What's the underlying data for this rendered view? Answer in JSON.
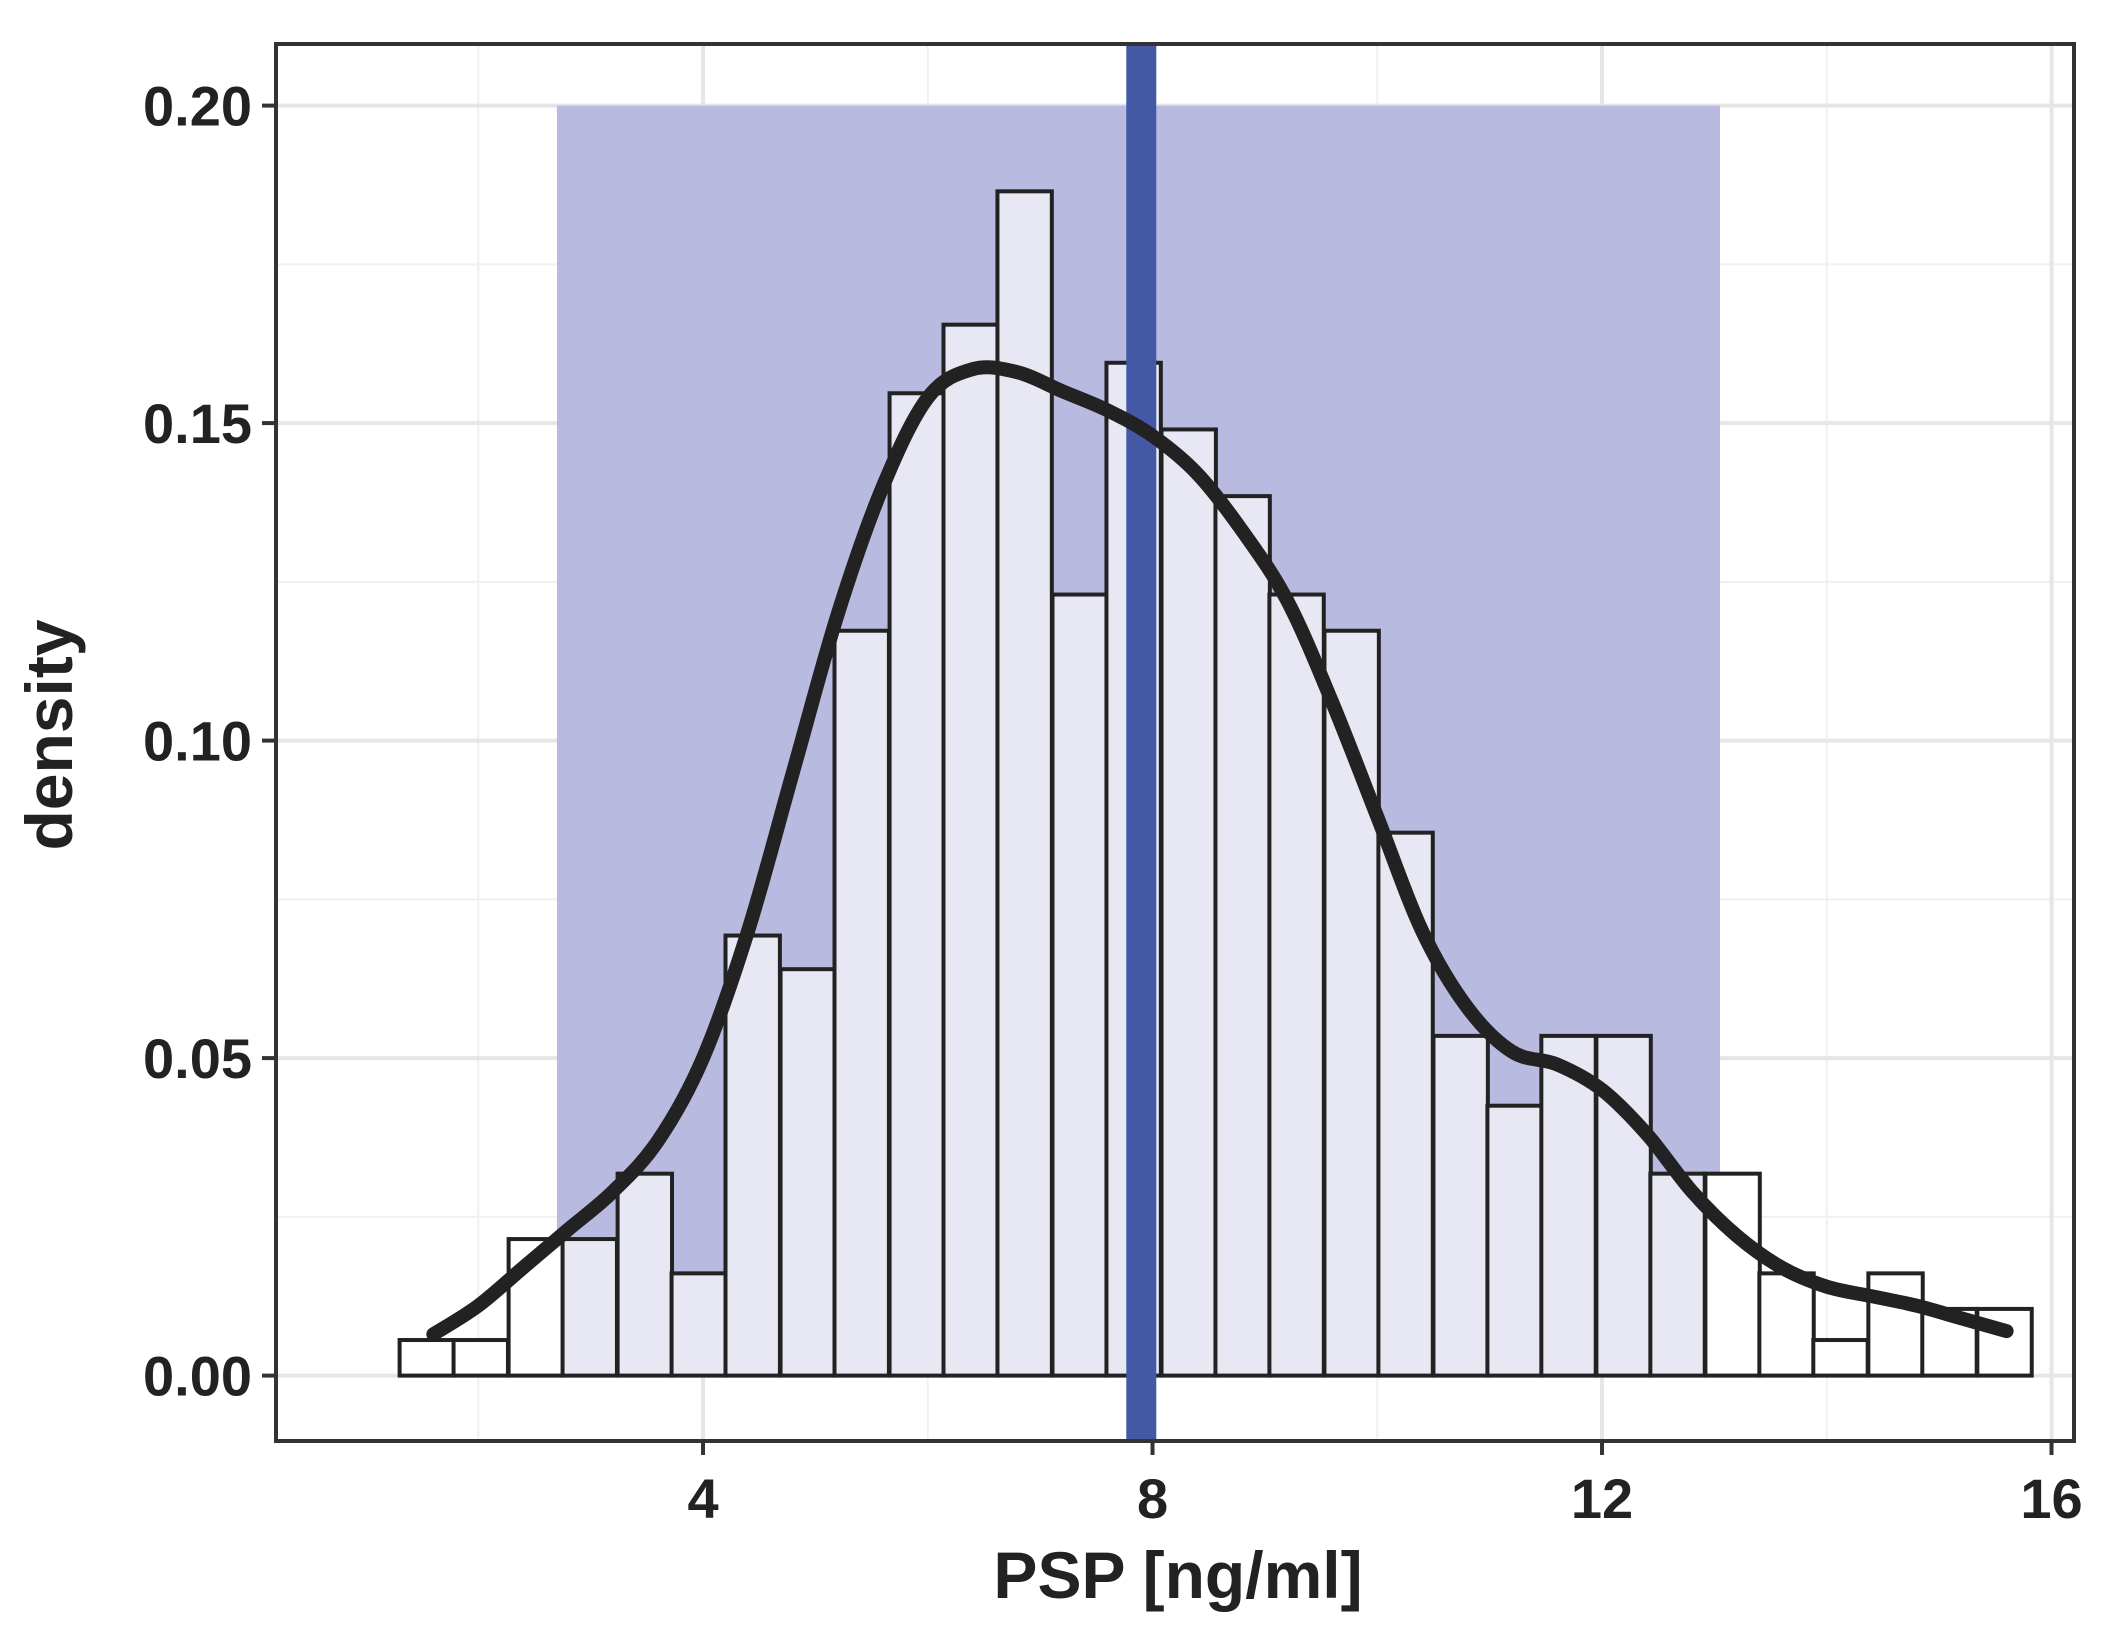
{
  "chart_data": {
    "type": "bar",
    "title": "",
    "xlabel": "PSP [ng/ml]",
    "ylabel": "density",
    "xlim": [
      0.2,
      16.2
    ],
    "ylim": [
      -0.0103,
      0.2097
    ],
    "xticks": [
      4,
      8,
      12,
      16
    ],
    "yticks": [
      0.0,
      0.05,
      0.1,
      0.15,
      0.2
    ],
    "ytick_labels": [
      "0.00",
      "0.05",
      "0.10",
      "0.15",
      "0.20"
    ],
    "grid": true,
    "bin_width": 0.484,
    "bins": [
      {
        "x0": 1.3,
        "density": 0.0056
      },
      {
        "x0": 1.78,
        "density": 0.0056
      },
      {
        "x0": 2.27,
        "density": 0.0215
      },
      {
        "x0": 2.75,
        "density": 0.0215
      },
      {
        "x0": 3.24,
        "density": 0.0318
      },
      {
        "x0": 3.72,
        "density": 0.0161
      },
      {
        "x0": 4.2,
        "density": 0.0693
      },
      {
        "x0": 4.69,
        "density": 0.064
      },
      {
        "x0": 5.17,
        "density": 0.1173
      },
      {
        "x0": 5.66,
        "density": 0.1547
      },
      {
        "x0": 6.14,
        "density": 0.1655
      },
      {
        "x0": 6.62,
        "density": 0.1865
      },
      {
        "x0": 7.11,
        "density": 0.123
      },
      {
        "x0": 7.59,
        "density": 0.1595
      },
      {
        "x0": 8.08,
        "density": 0.149
      },
      {
        "x0": 8.56,
        "density": 0.1385
      },
      {
        "x0": 9.04,
        "density": 0.123
      },
      {
        "x0": 9.53,
        "density": 0.1173
      },
      {
        "x0": 10.01,
        "density": 0.0855
      },
      {
        "x0": 10.5,
        "density": 0.0535
      },
      {
        "x0": 10.98,
        "density": 0.0425
      },
      {
        "x0": 11.46,
        "density": 0.0535
      },
      {
        "x0": 11.95,
        "density": 0.0535
      },
      {
        "x0": 12.43,
        "density": 0.0318
      },
      {
        "x0": 12.92,
        "density": 0.0318
      },
      {
        "x0": 13.4,
        "density": 0.0161
      },
      {
        "x0": 13.88,
        "density": 0.0056
      },
      {
        "x0": 14.37,
        "density": 0.0161
      },
      {
        "x0": 14.85,
        "density": 0.0105
      },
      {
        "x0": 15.34,
        "density": 0.0105
      }
    ],
    "density_curve": {
      "x": [
        1.6,
        2.0,
        2.4,
        2.8,
        3.2,
        3.6,
        4.0,
        4.4,
        4.8,
        5.2,
        5.6,
        6.0,
        6.4,
        6.8,
        7.2,
        7.6,
        8.0,
        8.4,
        8.8,
        9.2,
        9.6,
        10.0,
        10.4,
        10.8,
        11.2,
        11.6,
        12.0,
        12.4,
        12.8,
        13.2,
        13.6,
        14.0,
        14.4,
        14.8,
        15.2,
        15.6
      ],
      "y": [
        0.0065,
        0.011,
        0.017,
        0.023,
        0.029,
        0.037,
        0.05,
        0.07,
        0.095,
        0.12,
        0.14,
        0.154,
        0.1585,
        0.158,
        0.155,
        0.152,
        0.148,
        0.142,
        0.133,
        0.122,
        0.106,
        0.088,
        0.07,
        0.058,
        0.051,
        0.049,
        0.045,
        0.038,
        0.029,
        0.022,
        0.017,
        0.014,
        0.0125,
        0.011,
        0.009,
        0.007
      ]
    },
    "shaded_interval": {
      "x0": 2.7,
      "x1": 13.05,
      "y_top": 0.2,
      "color": "#b8bbdf"
    },
    "reference_line": {
      "x": 7.9,
      "color": "#4459a6"
    },
    "bar_fill_in_interval": "#e8e8f4",
    "bar_fill_outside": "#ffffff",
    "bar_stroke": "#222222",
    "curve_color": "#222222"
  }
}
